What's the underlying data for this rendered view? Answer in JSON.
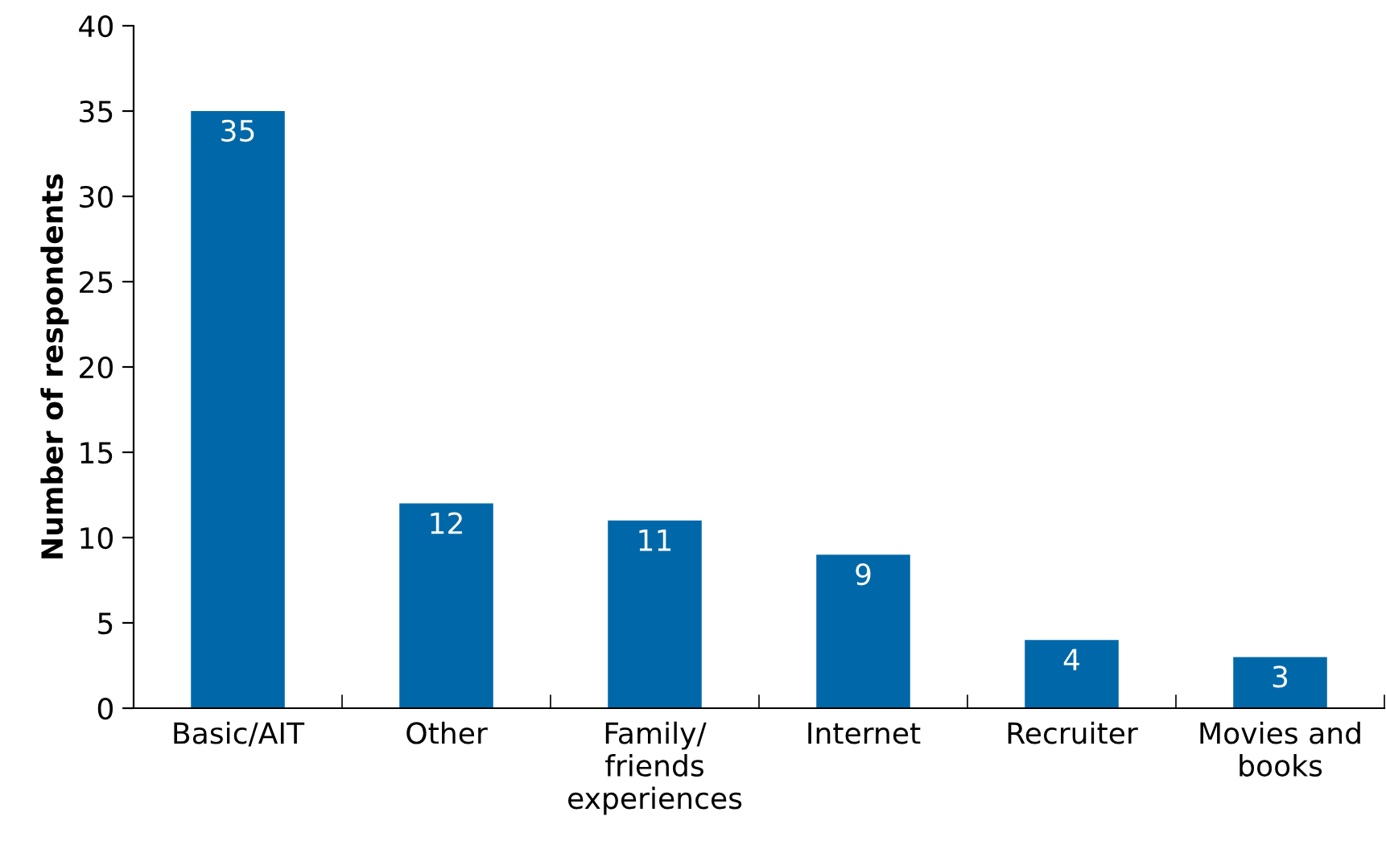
{
  "chart_data": {
    "type": "bar",
    "ylabel": "Number of respondents",
    "categories": [
      "Basic/AIT",
      "Other",
      "Family/\nfriends\nexperiences",
      "Internet",
      "Recruiter",
      "Movies and\nbooks"
    ],
    "values": [
      35,
      12,
      11,
      9,
      4,
      3
    ],
    "color": "#0068a8",
    "ylim": [
      0,
      40
    ],
    "yticks": [
      0,
      5,
      10,
      15,
      20,
      25,
      30,
      35,
      40
    ],
    "grid": false,
    "data_labels": true
  }
}
